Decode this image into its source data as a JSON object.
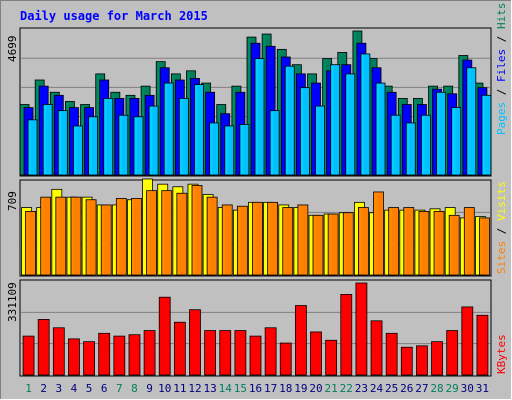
{
  "title": "Daily usage for March 2015",
  "colors": {
    "background": "#c0c0c0",
    "panel": "#c0c0c0",
    "frame_light": "#ffffff",
    "frame_dark": "#808080",
    "title": "#0000ff",
    "hits": "#00805c",
    "files": "#0000ff",
    "pages": "#00c0ff",
    "visits": "#ffff00",
    "sites": "#ff8000",
    "kbytes": "#ff0000",
    "weekday_label": "#000080",
    "weekend_label": "#00805c"
  },
  "legend": {
    "hits": "Hits",
    "files": "Files",
    "pages": "Pages",
    "sep": " / ",
    "visits": "Visits",
    "sites": "Sites",
    "kbytes": "KBytes"
  },
  "axis_max": {
    "top": "4699",
    "middle": "709",
    "bottom": "331109"
  },
  "chart_data": {
    "type": "bar",
    "title": "Daily usage for March 2015",
    "categories": [
      "1",
      "2",
      "3",
      "4",
      "5",
      "6",
      "7",
      "8",
      "9",
      "10",
      "11",
      "12",
      "13",
      "14",
      "15",
      "16",
      "17",
      "18",
      "19",
      "20",
      "21",
      "22",
      "23",
      "24",
      "25",
      "26",
      "27",
      "28",
      "29",
      "30",
      "31"
    ],
    "weekend_days": [
      "1",
      "7",
      "8",
      "14",
      "15",
      "21",
      "22",
      "28",
      "29"
    ],
    "panels": [
      {
        "name": "top",
        "ylim": [
          0,
          4699
        ],
        "series": [
          {
            "name": "Hits",
            "color": "#00805c",
            "values": [
              2300,
              3100,
              2700,
              2400,
              2300,
              3300,
              2700,
              2600,
              2900,
              3700,
              3300,
              3400,
              3000,
              2300,
              2900,
              4500,
              4600,
              4100,
              3600,
              3300,
              3800,
              4000,
              4699,
              3800,
              2900,
              2500,
              2500,
              2900,
              2900,
              3900,
              3000
            ]
          },
          {
            "name": "Files",
            "color": "#0000ff",
            "values": [
              2200,
              2900,
              2600,
              2200,
              2200,
              3100,
              2500,
              2500,
              2600,
              3500,
              3100,
              3150,
              2700,
              2000,
              2700,
              4300,
              4200,
              3850,
              3300,
              3000,
              3400,
              3600,
              4300,
              3500,
              2700,
              2300,
              2300,
              2800,
              2650,
              3750,
              2850
            ]
          },
          {
            "name": "Pages",
            "color": "#00c0ff",
            "values": [
              1800,
              2300,
              2100,
              1600,
              1900,
              2500,
              1950,
              1900,
              2250,
              3000,
              2500,
              2950,
              1700,
              1600,
              1650,
              3800,
              2100,
              3550,
              2850,
              2250,
              3600,
              3300,
              3950,
              3000,
              1950,
              1700,
              1950,
              2700,
              2200,
              3500,
              2600
            ]
          }
        ]
      },
      {
        "name": "middle",
        "ylim": [
          0,
          709
        ],
        "series": [
          {
            "name": "Visits",
            "color": "#ffff00",
            "values": [
              520,
              520,
              660,
              600,
              600,
              540,
              540,
              580,
              740,
              700,
              680,
              700,
              620,
              520,
              500,
              560,
              560,
              540,
              520,
              460,
              470,
              480,
              560,
              480,
              500,
              500,
              500,
              510,
              520,
              440,
              450
            ]
          },
          {
            "name": "Sites",
            "color": "#ff8000",
            "values": [
              490,
              600,
              600,
              600,
              580,
              540,
              590,
              590,
              650,
              650,
              630,
              690,
              600,
              540,
              530,
              560,
              560,
              520,
              540,
              460,
              470,
              480,
              520,
              640,
              520,
              520,
              490,
              490,
              460,
              520,
              440
            ]
          }
        ]
      },
      {
        "name": "bottom",
        "ylim": [
          0,
          331109
        ],
        "series": [
          {
            "name": "KBytes",
            "color": "#ff0000",
            "values": [
              140000,
              200000,
              170000,
              130000,
              120000,
              150000,
              140000,
              145000,
              160000,
              280000,
              190000,
              235000,
              160000,
              160000,
              160000,
              140000,
              170000,
              115000,
              250000,
              155000,
              125000,
              290000,
              331109,
              195000,
              150000,
              100000,
              105000,
              120000,
              160000,
              245000,
              215000
            ]
          }
        ]
      }
    ]
  }
}
